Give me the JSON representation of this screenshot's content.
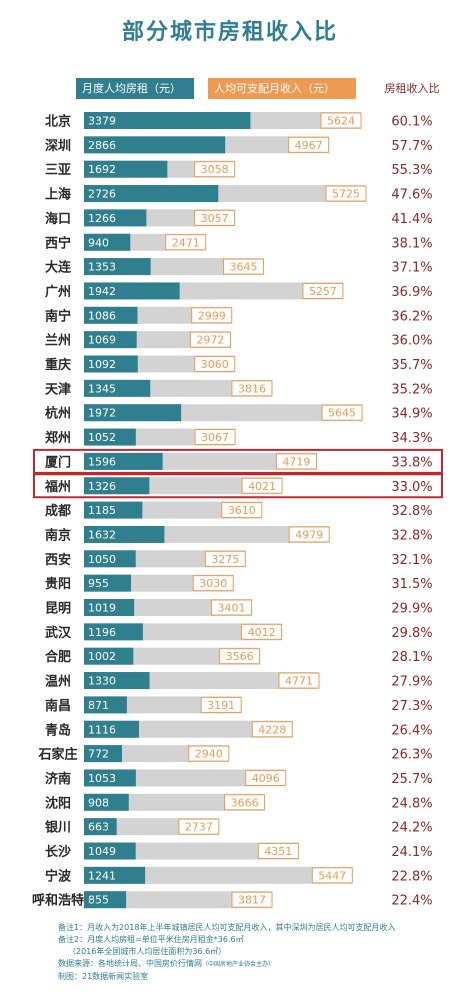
{
  "title": "部分城市房租收入比",
  "legend": {
    "rent": "月度人均房租（元）",
    "income": "人均可支配月收入（元）",
    "ratio": "房租收入比"
  },
  "colors": {
    "rent_bar": "#2f7f8f",
    "income_bar": "#d3d3d3",
    "income_label_bg": "#ef9a52",
    "ratio_text": "#8f2727",
    "title": "#2e7f94",
    "highlight_border": "#c0282d"
  },
  "chart_data": {
    "type": "bar",
    "categories": [
      "北京",
      "深圳",
      "三亚",
      "上海",
      "海口",
      "西宁",
      "大连",
      "广州",
      "南宁",
      "兰州",
      "重庆",
      "天津",
      "杭州",
      "郑州",
      "厦门",
      "福州",
      "成都",
      "南京",
      "西安",
      "贵阳",
      "昆明",
      "武汉",
      "合肥",
      "温州",
      "南昌",
      "青岛",
      "石家庄",
      "济南",
      "沈阳",
      "银川",
      "长沙",
      "宁波",
      "呼和浩特"
    ],
    "series": [
      {
        "name": "月度人均房租（元）",
        "values": [
          3379,
          2866,
          1692,
          2726,
          1266,
          940,
          1353,
          1942,
          1086,
          1069,
          1092,
          1345,
          1972,
          1052,
          1596,
          1326,
          1185,
          1632,
          1050,
          955,
          1019,
          1196,
          1002,
          1330,
          871,
          1116,
          772,
          1053,
          908,
          663,
          1049,
          1241,
          855
        ]
      },
      {
        "name": "人均可支配月收入（元）",
        "values": [
          5624,
          4967,
          3058,
          5725,
          3057,
          2471,
          3645,
          5257,
          2999,
          2972,
          3060,
          3816,
          5645,
          3067,
          4719,
          4021,
          3610,
          4979,
          3275,
          3030,
          3401,
          4012,
          3566,
          4771,
          3191,
          4228,
          2940,
          4096,
          3666,
          2737,
          4351,
          5447,
          3817
        ]
      },
      {
        "name": "房租收入比",
        "values": [
          "60.1%",
          "57.7%",
          "55.3%",
          "47.6%",
          "41.4%",
          "38.1%",
          "37.1%",
          "36.9%",
          "36.2%",
          "36.0%",
          "35.7%",
          "35.2%",
          "34.9%",
          "34.3%",
          "33.8%",
          "33.0%",
          "32.8%",
          "32.8%",
          "32.1%",
          "31.5%",
          "29.9%",
          "29.8%",
          "28.1%",
          "27.9%",
          "27.3%",
          "26.4%",
          "26.3%",
          "25.7%",
          "24.8%",
          "24.2%",
          "24.1%",
          "22.8%",
          "22.4%"
        ]
      }
    ],
    "highlighted": [
      "厦门",
      "福州"
    ],
    "xlim": [
      0,
      5725
    ]
  },
  "notes": {
    "line1": "备注1：月收入为2018年上半年城镇居民人均可支配月收入，其中深圳为居民人均可支配月收入",
    "line2": "备注2：月度人均房租=单位平米住房月租金*36.6㎡",
    "line3": "（2016年全国城市人均居住面积为36.6㎡）",
    "line4": "数据来源：各地统计局、中国房价行情网",
    "line4_small": "（中国房地产业协会主办）",
    "line5": "制图：21数据新闻实验室"
  }
}
